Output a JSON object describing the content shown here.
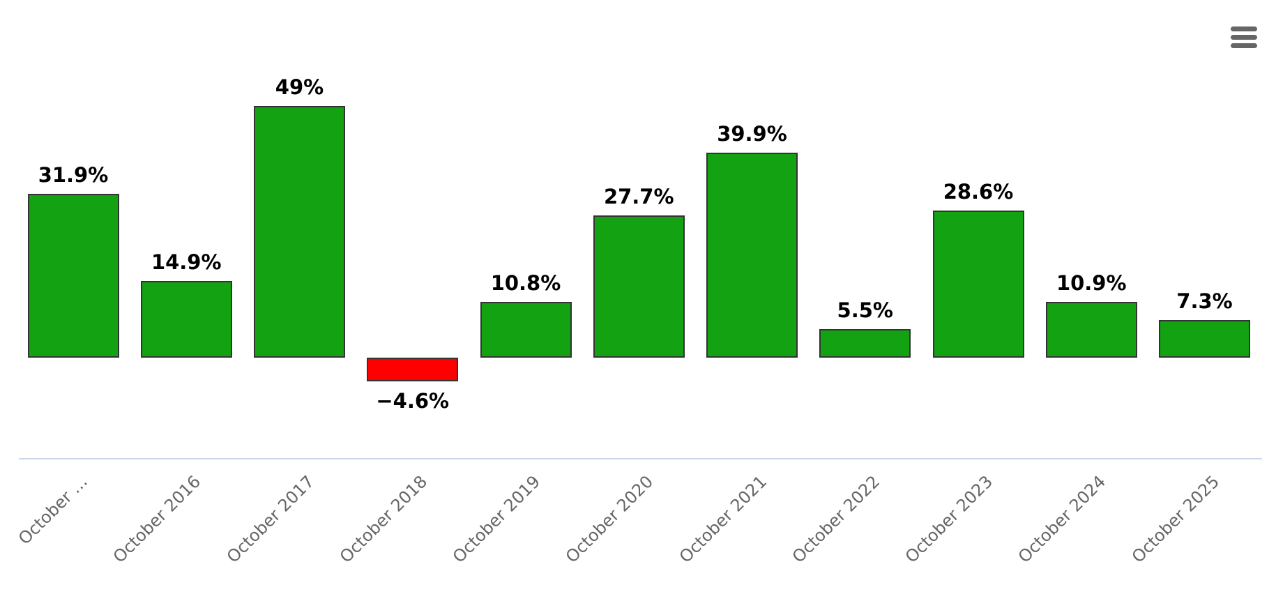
{
  "chart_data": {
    "type": "bar",
    "title": "",
    "xlabel": "",
    "ylabel": "",
    "categories": [
      "October …",
      "October 2016",
      "October 2017",
      "October 2018",
      "October 2019",
      "October 2020",
      "October 2021",
      "October 2022",
      "October 2023",
      "October 2024",
      "October 2025"
    ],
    "values": [
      31.9,
      14.9,
      49,
      -4.6,
      10.8,
      27.7,
      39.9,
      5.5,
      28.6,
      10.9,
      7.3
    ],
    "value_labels": [
      "31.9%",
      "14.9%",
      "49%",
      "−4.6%",
      "10.8%",
      "27.7%",
      "39.9%",
      "5.5%",
      "28.6%",
      "10.9%",
      "7.3%"
    ],
    "ylim": [
      -10,
      55
    ],
    "grid": false,
    "legend": false,
    "colors": {
      "positive": "#12a212",
      "negative": "#ff0000",
      "bar_border": "#333333",
      "axis_line": "#ccd6eb",
      "value_label": "#000000",
      "category_label": "#666666"
    }
  },
  "icons": {
    "menu": "hamburger-menu"
  }
}
